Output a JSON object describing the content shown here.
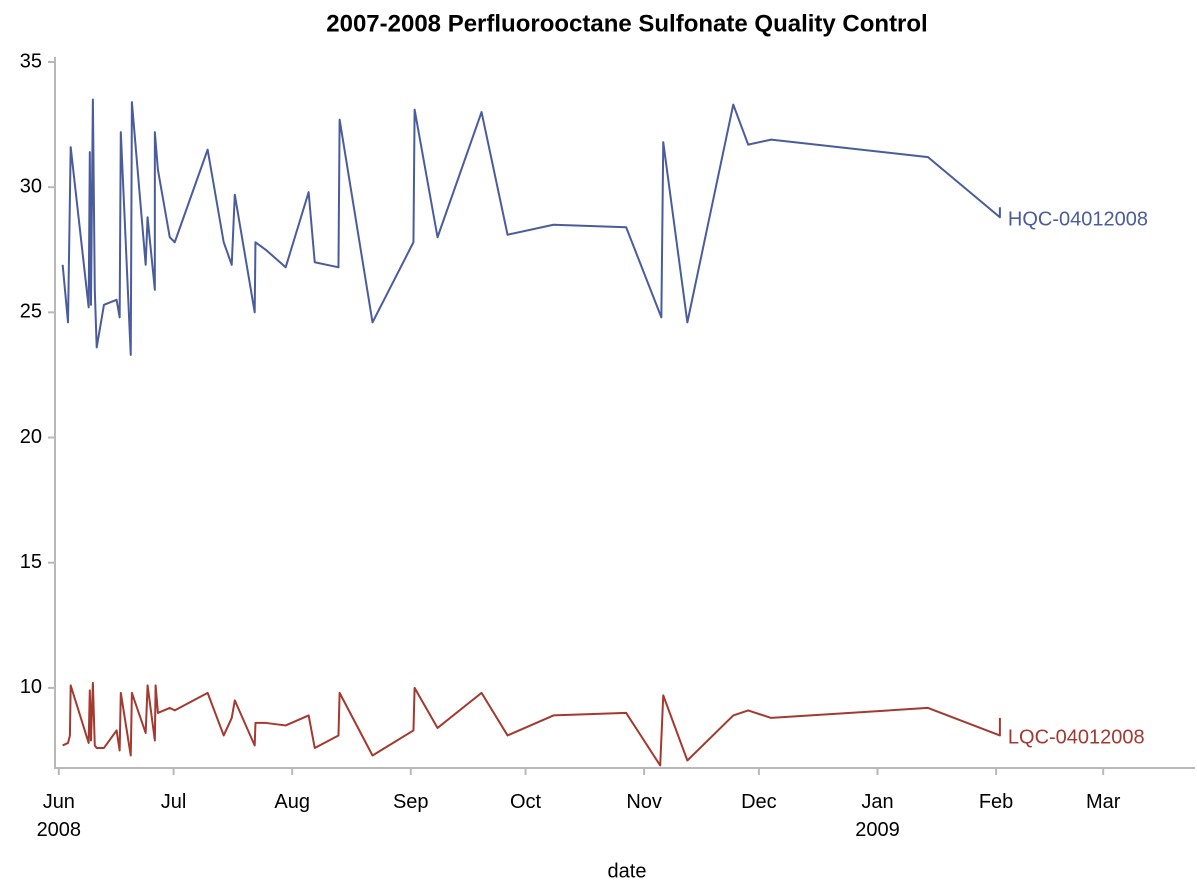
{
  "chart_data": {
    "type": "line",
    "title": "2007-2008 Perfluorooctane Sulfonate Quality Control",
    "xlabel": "date",
    "xlim": [
      -1,
      297
    ],
    "xticks": [
      {
        "value": 0,
        "label": "Jun 2008"
      },
      {
        "value": 30,
        "label": "Jul"
      },
      {
        "value": 61,
        "label": "Aug"
      },
      {
        "value": 92,
        "label": "Sep"
      },
      {
        "value": 122,
        "label": "Oct"
      },
      {
        "value": 153,
        "label": "Nov"
      },
      {
        "value": 183,
        "label": "Dec"
      },
      {
        "value": 214,
        "label": "Jan 2009"
      },
      {
        "value": 245,
        "label": "Feb"
      },
      {
        "value": 273,
        "label": "Mar"
      }
    ],
    "ylim": [
      6.8,
      35.2
    ],
    "yticks": [
      10,
      15,
      20,
      25,
      30,
      35
    ],
    "grid": false,
    "series": [
      {
        "name": "HQC-04012008",
        "color": "#4a5c9c",
        "x": [
          1.0,
          2.4,
          3.1,
          7.8,
          8.1,
          8.4,
          8.9,
          9.4,
          9.9,
          11.8,
          15.1,
          15.9,
          16.2,
          18.8,
          19.1,
          22.7,
          23.2,
          25.1,
          25.1,
          25.9,
          29.0,
          30.3,
          38.9,
          43.1,
          45.2,
          46.0,
          51.2,
          51.4,
          54.1,
          59.3,
          65.3,
          66.9,
          73.1,
          73.4,
          82.0,
          92.7,
          93.0,
          99.0,
          110.5,
          117.3,
          129.3,
          148.3,
          157.5,
          158.0,
          164.3,
          176.3,
          180.2,
          186.2,
          227.2,
          246.0,
          246.0
        ],
        "values": [
          26.9,
          24.6,
          31.6,
          25.2,
          31.4,
          25.3,
          33.5,
          25.9,
          23.6,
          25.3,
          25.5,
          24.8,
          32.2,
          23.3,
          33.4,
          26.9,
          28.8,
          25.9,
          32.2,
          30.7,
          28.0,
          27.8,
          31.5,
          27.8,
          26.9,
          29.7,
          25.0,
          27.8,
          27.5,
          26.8,
          29.8,
          27.0,
          26.8,
          32.7,
          24.6,
          27.8,
          33.1,
          28.0,
          33.0,
          28.1,
          28.5,
          28.4,
          24.8,
          31.8,
          24.6,
          33.3,
          31.7,
          31.9,
          31.2,
          28.8,
          29.2
        ]
      },
      {
        "name": "LQC-04012008",
        "color": "#a3392f",
        "x": [
          1.0,
          2.4,
          2.9,
          3.1,
          7.8,
          8.1,
          8.4,
          8.9,
          9.4,
          9.9,
          11.8,
          15.1,
          15.9,
          16.2,
          18.8,
          19.1,
          22.7,
          23.2,
          25.1,
          25.3,
          25.9,
          29.0,
          30.3,
          38.9,
          43.1,
          45.2,
          46.0,
          51.2,
          51.4,
          54.1,
          59.3,
          65.3,
          66.9,
          73.1,
          73.4,
          82.0,
          92.7,
          93.0,
          99.0,
          110.5,
          117.3,
          129.3,
          148.3,
          157.2,
          158.0,
          164.3,
          176.3,
          180.2,
          186.2,
          227.2,
          246.0,
          246.0
        ],
        "values": [
          7.7,
          7.8,
          8.1,
          10.1,
          7.8,
          9.9,
          7.9,
          10.2,
          7.7,
          7.6,
          7.6,
          8.3,
          7.5,
          9.8,
          7.3,
          9.8,
          8.2,
          10.1,
          7.9,
          10.1,
          9.0,
          9.2,
          9.1,
          9.8,
          8.1,
          8.8,
          9.5,
          7.7,
          8.6,
          8.6,
          8.5,
          8.9,
          7.6,
          8.1,
          9.8,
          7.3,
          8.3,
          10.0,
          8.4,
          9.8,
          8.1,
          8.9,
          9.0,
          6.9,
          9.7,
          7.1,
          8.9,
          9.1,
          8.8,
          9.2,
          8.1,
          8.8
        ]
      }
    ]
  }
}
